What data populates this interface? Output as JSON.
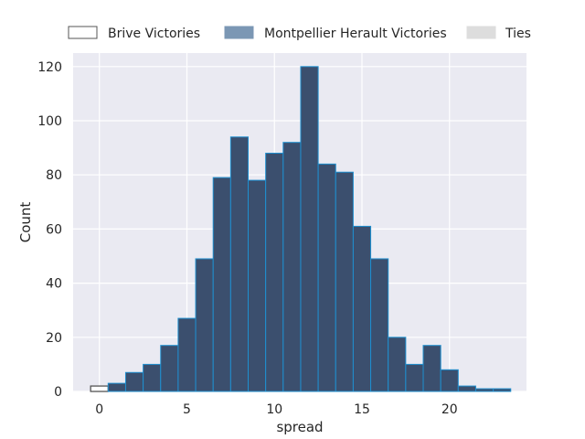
{
  "chart_data": {
    "type": "bar",
    "xlabel": "spread",
    "ylabel": "Count",
    "xlim": [
      -1.5,
      24.4
    ],
    "ylim": [
      0,
      125
    ],
    "x_ticks": [
      0,
      5,
      10,
      15,
      20
    ],
    "y_ticks": [
      0,
      20,
      40,
      60,
      80,
      100,
      120
    ],
    "grid": true,
    "legend_position": "top",
    "legend": [
      {
        "label": "Brive Victories",
        "swatch": "outline"
      },
      {
        "label": "Montpellier Herault Victories",
        "swatch": "filled"
      },
      {
        "label": "Ties",
        "swatch": "light"
      }
    ],
    "series": [
      {
        "name": "Brive Victories",
        "color": "#ffffff",
        "edge_color": "#555555",
        "bins": [
          {
            "x0": -0.5,
            "x1": 0.5,
            "value": 2
          }
        ]
      },
      {
        "name": "Montpellier Herault Victories",
        "color": "#3b4f6e",
        "edge_color": "#1f8fcf",
        "bins": [
          {
            "x0": 0.5,
            "x1": 1.5,
            "value": 3
          },
          {
            "x0": 1.5,
            "x1": 2.5,
            "value": 7
          },
          {
            "x0": 2.5,
            "x1": 3.5,
            "value": 10
          },
          {
            "x0": 3.5,
            "x1": 4.5,
            "value": 17
          },
          {
            "x0": 4.5,
            "x1": 5.5,
            "value": 27
          },
          {
            "x0": 5.5,
            "x1": 6.5,
            "value": 49
          },
          {
            "x0": 6.5,
            "x1": 7.5,
            "value": 79
          },
          {
            "x0": 7.5,
            "x1": 8.5,
            "value": 94
          },
          {
            "x0": 8.5,
            "x1": 9.5,
            "value": 78
          },
          {
            "x0": 9.5,
            "x1": 10.5,
            "value": 88
          },
          {
            "x0": 10.5,
            "x1": 11.5,
            "value": 92
          },
          {
            "x0": 11.5,
            "x1": 12.5,
            "value": 120
          },
          {
            "x0": 12.5,
            "x1": 13.5,
            "value": 84
          },
          {
            "x0": 13.5,
            "x1": 14.5,
            "value": 81
          },
          {
            "x0": 14.5,
            "x1": 15.5,
            "value": 61
          },
          {
            "x0": 15.5,
            "x1": 16.5,
            "value": 49
          },
          {
            "x0": 16.5,
            "x1": 17.5,
            "value": 20
          },
          {
            "x0": 17.5,
            "x1": 18.5,
            "value": 10
          },
          {
            "x0": 18.5,
            "x1": 19.5,
            "value": 17
          },
          {
            "x0": 19.5,
            "x1": 20.5,
            "value": 8
          },
          {
            "x0": 20.5,
            "x1": 21.5,
            "value": 2
          },
          {
            "x0": 21.5,
            "x1": 22.5,
            "value": 1
          },
          {
            "x0": 22.5,
            "x1": 23.5,
            "value": 1
          }
        ]
      },
      {
        "name": "Ties",
        "color": "#dddddd",
        "edge_color": "#dddddd",
        "bins": []
      }
    ]
  },
  "colors": {
    "plot_background": "#eaeaf2",
    "grid": "#ffffff",
    "text": "#262626"
  }
}
